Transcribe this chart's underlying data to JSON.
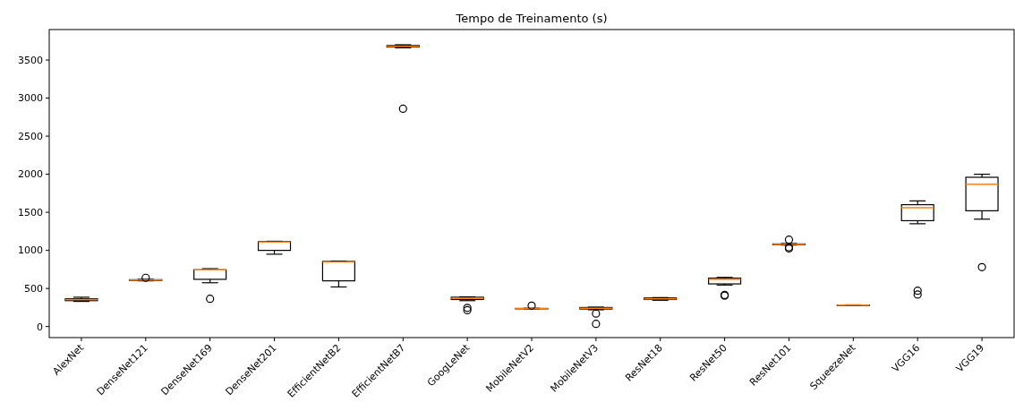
{
  "chart_data": {
    "type": "box",
    "title": "Tempo de Treinamento (s)",
    "categories": [
      "AlexNet",
      "DenseNet121",
      "DenseNet169",
      "DenseNet201",
      "EfficientNetB2",
      "EfficientNetB7",
      "GoogLeNet",
      "MobileNetV2",
      "MobileNetV3",
      "ResNet18",
      "ResNet50",
      "ResNet101",
      "SqueezeNet",
      "VGG16",
      "VGG19"
    ],
    "boxes": [
      {
        "low": 330,
        "q1": 340,
        "median": 355,
        "q3": 365,
        "high": 385
      },
      {
        "low": 600,
        "q1": 605,
        "median": 610,
        "q3": 615,
        "high": 620,
        "outliers": [
          640
        ]
      },
      {
        "low": 575,
        "q1": 620,
        "median": 745,
        "q3": 745,
        "high": 760,
        "outliers": [
          365
        ]
      },
      {
        "low": 950,
        "q1": 1000,
        "median": 1110,
        "q3": 1115,
        "high": 1120
      },
      {
        "low": 520,
        "q1": 600,
        "median": 850,
        "q3": 855,
        "high": 860
      },
      {
        "low": 3660,
        "q1": 3670,
        "median": 3680,
        "q3": 3690,
        "high": 3700,
        "outliers": [
          2860
        ]
      },
      {
        "low": 340,
        "q1": 355,
        "median": 370,
        "q3": 385,
        "high": 390,
        "outliers": [
          215,
          245
        ]
      },
      {
        "low": 230,
        "q1": 232,
        "median": 235,
        "q3": 238,
        "high": 240,
        "outliers": [
          275
        ]
      },
      {
        "low": 220,
        "q1": 230,
        "median": 240,
        "q3": 250,
        "high": 255,
        "outliers": [
          170,
          35
        ]
      },
      {
        "low": 345,
        "q1": 355,
        "median": 365,
        "q3": 375,
        "high": 380
      },
      {
        "low": 545,
        "q1": 560,
        "median": 620,
        "q3": 635,
        "high": 645,
        "outliers": [
          405,
          415
        ]
      },
      {
        "low": 1070,
        "q1": 1075,
        "median": 1080,
        "q3": 1085,
        "high": 1090,
        "outliers": [
          1140,
          1040,
          1025
        ]
      },
      {
        "low": 275,
        "q1": 278,
        "median": 280,
        "q3": 282,
        "high": 285
      },
      {
        "low": 1350,
        "q1": 1390,
        "median": 1560,
        "q3": 1600,
        "high": 1650,
        "outliers": [
          420,
          470
        ]
      },
      {
        "low": 1410,
        "q1": 1520,
        "median": 1870,
        "q3": 1960,
        "high": 2000,
        "outliers": [
          780
        ]
      }
    ],
    "color": "#000000",
    "ylim": [
      -145,
      3900
    ],
    "yticks": [
      0,
      500,
      1000,
      1500,
      2000,
      2500,
      3000,
      3500
    ]
  }
}
